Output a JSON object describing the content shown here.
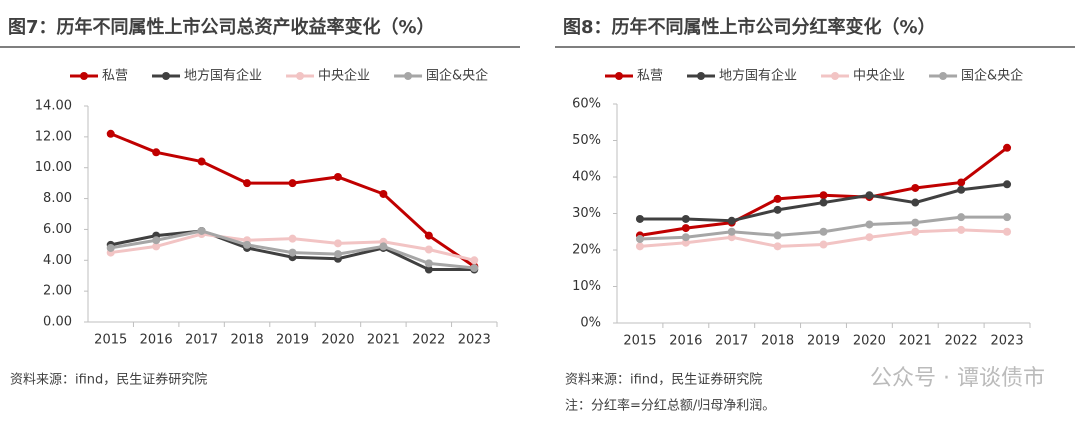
{
  "chart_data": [
    {
      "type": "line",
      "title": "图7：历年不同属性上市公司总资产收益率变化（%）",
      "categories": [
        "2015",
        "2016",
        "2017",
        "2018",
        "2019",
        "2020",
        "2021",
        "2022",
        "2023"
      ],
      "series": [
        {
          "name": "私营",
          "color": "#c00000",
          "values": [
            12.2,
            11.0,
            10.4,
            9.0,
            9.0,
            9.4,
            8.3,
            5.6,
            3.6
          ]
        },
        {
          "name": "地方国有企业",
          "color": "#404040",
          "values": [
            5.0,
            5.6,
            5.9,
            4.8,
            4.2,
            4.1,
            4.8,
            3.4,
            3.4
          ]
        },
        {
          "name": "中央企业",
          "color": "#f2c4c4",
          "values": [
            4.5,
            4.9,
            5.7,
            5.3,
            5.4,
            5.1,
            5.2,
            4.7,
            4.0
          ]
        },
        {
          "name": "国企&央企",
          "color": "#a6a6a6",
          "values": [
            4.8,
            5.3,
            5.9,
            5.0,
            4.5,
            4.4,
            4.9,
            3.8,
            3.5
          ]
        }
      ],
      "ylim": [
        0,
        14
      ],
      "yticks": [
        {
          "value": 0,
          "label": "0.00"
        },
        {
          "value": 2,
          "label": "2.00"
        },
        {
          "value": 4,
          "label": "4.00"
        },
        {
          "value": 6,
          "label": "6.00"
        },
        {
          "value": 8,
          "label": "8.00"
        },
        {
          "value": 10,
          "label": "10.00"
        },
        {
          "value": 12,
          "label": "12.00"
        },
        {
          "value": 14,
          "label": "14.00"
        }
      ],
      "source": "资料来源：ifind，民生证券研究院"
    },
    {
      "type": "line",
      "title": "图8：历年不同属性上市公司分红率变化（%）",
      "categories": [
        "2015",
        "2016",
        "2017",
        "2018",
        "2019",
        "2020",
        "2021",
        "2022",
        "2023"
      ],
      "series": [
        {
          "name": "私营",
          "color": "#c00000",
          "values": [
            24,
            26,
            27.5,
            34,
            35,
            34.5,
            37,
            38.5,
            48
          ]
        },
        {
          "name": "地方国有企业",
          "color": "#404040",
          "values": [
            28.5,
            28.5,
            28,
            31,
            33,
            35,
            33,
            36.5,
            38
          ]
        },
        {
          "name": "中央企业",
          "color": "#f2c4c4",
          "values": [
            21,
            22,
            23.5,
            21,
            21.5,
            23.5,
            25,
            25.5,
            25
          ]
        },
        {
          "name": "国企&央企",
          "color": "#a6a6a6",
          "values": [
            23,
            23.5,
            25,
            24,
            25,
            27,
            27.5,
            29,
            29
          ]
        }
      ],
      "ylim": [
        0,
        60
      ],
      "yticks": [
        {
          "value": 0,
          "label": "0%"
        },
        {
          "value": 10,
          "label": "10%"
        },
        {
          "value": 20,
          "label": "20%"
        },
        {
          "value": 30,
          "label": "30%"
        },
        {
          "value": 40,
          "label": "40%"
        },
        {
          "value": 50,
          "label": "50%"
        },
        {
          "value": 60,
          "label": "60%"
        }
      ],
      "source": "资料来源：ifind，民生证券研究院",
      "note": "注：分红率=分红总额/归母净利润。"
    }
  ],
  "watermark": "公众号 · 谭谈债市"
}
